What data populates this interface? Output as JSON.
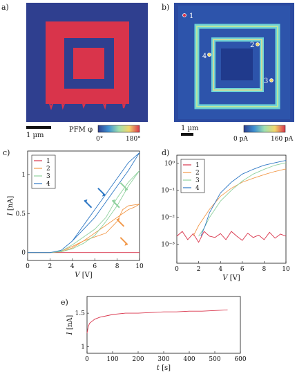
{
  "panel_labels": {
    "a": "a)",
    "b": "b)",
    "c": "c)",
    "d": "d)",
    "e": "e)"
  },
  "panel_a": {
    "scalebar": "1 µm",
    "colorbar_title": "PFM φ",
    "colorbar_min": "0°",
    "colorbar_max": "180°",
    "colors": {
      "background": "#2f3f8f",
      "pattern": "#d9344b"
    }
  },
  "panel_b": {
    "scalebar": "1 µm",
    "colorbar_min": "0 pA",
    "colorbar_max": "160 pA",
    "markers": [
      "1",
      "2",
      "3",
      "4"
    ]
  },
  "chart_data": [
    {
      "id": "c",
      "type": "line",
      "xlabel": "V",
      "xunit": "[V]",
      "ylabel": "I",
      "yunit": "[nA]",
      "xlim": [
        0,
        10
      ],
      "ylim": [
        -0.1,
        1.3
      ],
      "xticks": [
        "0",
        "2",
        "4",
        "6",
        "8",
        "10"
      ],
      "yticks": [
        "0",
        "0.5",
        "1"
      ],
      "legend_position": "top-left",
      "series": [
        {
          "name": "1",
          "color": "#d9344b",
          "x": [
            0,
            2,
            4,
            6,
            8,
            10
          ],
          "y": [
            0,
            0,
            0,
            0,
            0,
            0
          ]
        },
        {
          "name": "2",
          "color": "#f2994a",
          "x": [
            0,
            2,
            3,
            4,
            5,
            6,
            7,
            8,
            8.5,
            9,
            10,
            10,
            9.5,
            9,
            8,
            7,
            6,
            5,
            4,
            3,
            2,
            0
          ],
          "y": [
            0,
            0,
            0.02,
            0.08,
            0.15,
            0.2,
            0.25,
            0.4,
            0.55,
            0.6,
            0.62,
            0.62,
            0.58,
            0.55,
            0.45,
            0.35,
            0.25,
            0.15,
            0.06,
            0.01,
            0,
            0
          ]
        },
        {
          "name": "3",
          "color": "#8fd19e",
          "x": [
            0,
            2,
            3,
            4,
            5,
            6,
            7,
            8,
            9,
            10,
            10,
            9,
            8,
            7,
            6,
            5,
            4,
            3,
            2,
            0
          ],
          "y": [
            0,
            0,
            0.02,
            0.1,
            0.2,
            0.3,
            0.45,
            0.7,
            0.9,
            1.05,
            1.05,
            0.85,
            0.6,
            0.4,
            0.22,
            0.12,
            0.05,
            0.01,
            0,
            0
          ]
        },
        {
          "name": "4",
          "color": "#2f78c4",
          "x": [
            0,
            2,
            3,
            4,
            5,
            6,
            7,
            8,
            9,
            10,
            10,
            9,
            8,
            7,
            6,
            5,
            4,
            3,
            2,
            0
          ],
          "y": [
            0,
            0,
            0.03,
            0.15,
            0.3,
            0.45,
            0.65,
            0.85,
            1.05,
            1.28,
            1.28,
            1.15,
            0.95,
            0.75,
            0.55,
            0.35,
            0.15,
            0.03,
            0,
            0
          ]
        }
      ],
      "arrows": [
        {
          "x": 5.4,
          "y": 0.62,
          "color": "#2f78c4",
          "dir": "down"
        },
        {
          "x": 6.6,
          "y": 0.78,
          "color": "#2f78c4",
          "dir": "up"
        },
        {
          "x": 7.9,
          "y": 0.62,
          "color": "#8fd19e",
          "dir": "down"
        },
        {
          "x": 8.6,
          "y": 0.85,
          "color": "#8fd19e",
          "dir": "up"
        },
        {
          "x": 8.3,
          "y": 0.38,
          "color": "#f2994a",
          "dir": "down"
        },
        {
          "x": 8.6,
          "y": 0.15,
          "color": "#f2994a",
          "dir": "up"
        }
      ]
    },
    {
      "id": "d",
      "type": "line",
      "xlabel": "V",
      "xunit": "[V]",
      "ylabel": "",
      "xlim": [
        0,
        10
      ],
      "ylog": true,
      "ylim": [
        0.0002,
        2
      ],
      "xticks": [
        "0",
        "2",
        "4",
        "6",
        "8",
        "10"
      ],
      "yticks": [
        "10⁰",
        "10⁻¹",
        "10⁻²",
        "10⁻³"
      ],
      "legend_position": "top-left",
      "series": [
        {
          "name": "1",
          "color": "#d9344b",
          "x": [
            0,
            0.5,
            1,
            1.5,
            2,
            2.5,
            3,
            3.5,
            4,
            4.5,
            5,
            5.5,
            6,
            6.5,
            7,
            7.5,
            8,
            8.5,
            9,
            9.5,
            10
          ],
          "y": [
            0.002,
            0.003,
            0.0015,
            0.0025,
            0.0012,
            0.003,
            0.002,
            0.0018,
            0.0025,
            0.0015,
            0.003,
            0.002,
            0.0014,
            0.0026,
            0.0018,
            0.0022,
            0.0015,
            0.0028,
            0.0017,
            0.0024,
            0.002
          ]
        },
        {
          "name": "2",
          "color": "#f2994a",
          "x": [
            1.5,
            2,
            3,
            4,
            5,
            6,
            7,
            8,
            9,
            10
          ],
          "y": [
            0.002,
            0.005,
            0.02,
            0.06,
            0.12,
            0.2,
            0.28,
            0.38,
            0.5,
            0.62
          ]
        },
        {
          "name": "3",
          "color": "#8fd19e",
          "x": [
            2,
            2.5,
            3,
            4,
            5,
            6,
            7,
            8,
            9,
            10
          ],
          "y": [
            0.002,
            0.004,
            0.01,
            0.04,
            0.1,
            0.22,
            0.4,
            0.6,
            0.85,
            1.05
          ]
        },
        {
          "name": "4",
          "color": "#2f78c4",
          "x": [
            2.2,
            2.6,
            3,
            4,
            5,
            6,
            7,
            8,
            9,
            10
          ],
          "y": [
            0.002,
            0.005,
            0.015,
            0.08,
            0.2,
            0.4,
            0.6,
            0.85,
            1.05,
            1.28
          ]
        }
      ]
    },
    {
      "id": "e",
      "type": "line",
      "xlabel": "t",
      "xunit": "[s]",
      "ylabel": "I",
      "yunit": "[nA]",
      "xlim": [
        0,
        600
      ],
      "ylim": [
        0.9,
        1.75
      ],
      "xticks": [
        "0",
        "100",
        "200",
        "300",
        "400",
        "500",
        "600"
      ],
      "yticks": [
        "1",
        "1.5"
      ],
      "series": [
        {
          "color": "#d9344b",
          "x": [
            0,
            5,
            10,
            20,
            30,
            50,
            75,
            100,
            150,
            200,
            250,
            300,
            350,
            400,
            450,
            500,
            550
          ],
          "y": [
            1.2,
            1.3,
            1.35,
            1.38,
            1.41,
            1.44,
            1.46,
            1.48,
            1.5,
            1.5,
            1.51,
            1.52,
            1.52,
            1.53,
            1.53,
            1.54,
            1.55
          ]
        }
      ]
    }
  ]
}
